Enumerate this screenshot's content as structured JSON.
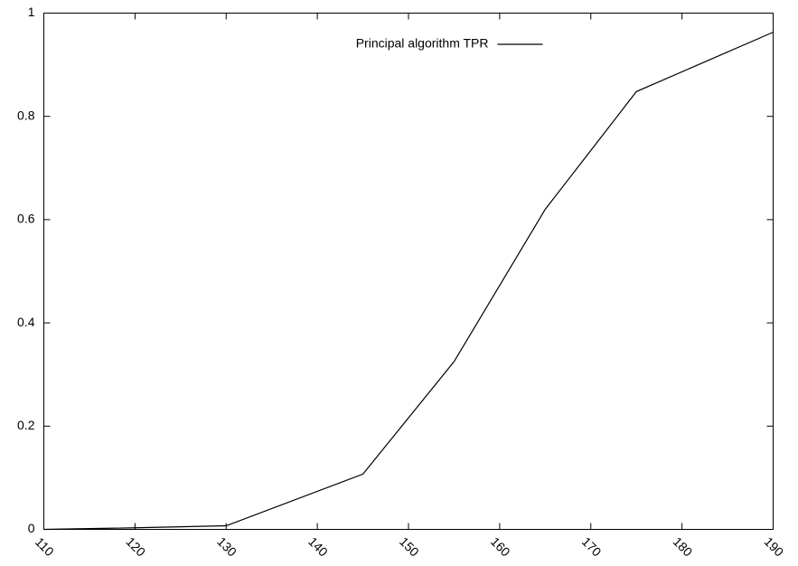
{
  "chart_data": {
    "type": "line",
    "x": [
      110,
      120,
      130,
      145,
      155,
      165,
      175,
      190
    ],
    "series": [
      {
        "name": "Principal algorithm TPR",
        "color": "#000000",
        "values": [
          0,
          0.003,
          0.007,
          0.107,
          0.325,
          0.62,
          0.848,
          0.963
        ]
      }
    ],
    "xlim": [
      110,
      190
    ],
    "xticks": [
      110,
      120,
      130,
      140,
      150,
      160,
      170,
      180,
      190
    ],
    "ylim": [
      0,
      1
    ],
    "yticks": [
      0,
      0.2,
      0.4,
      0.6,
      0.8,
      1
    ],
    "grid": false,
    "legend": "top-right"
  }
}
